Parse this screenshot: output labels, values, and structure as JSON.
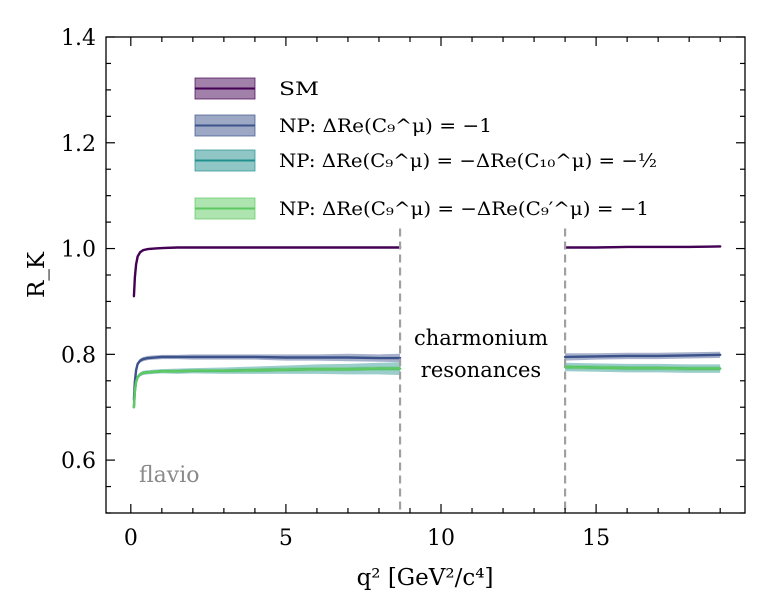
{
  "chart_data": {
    "type": "line",
    "xlabel": "q² [GeV²/c⁴]",
    "ylabel": "R_K",
    "xlim": [
      -0.8,
      19.8
    ],
    "ylim": [
      0.5,
      1.4
    ],
    "x_ticks": [
      0,
      5,
      10,
      15
    ],
    "y_ticks": [
      0.6,
      0.8,
      1.0,
      1.2,
      1.4
    ],
    "x_tick_labels": [
      "0",
      "5",
      "10",
      "15"
    ],
    "y_tick_labels": [
      "0.6",
      "0.8",
      "1.0",
      "1.2",
      "1.4"
    ],
    "grid": false,
    "legend_position": "upper-left",
    "gap": {
      "x_start": 8.68,
      "x_end": 14.0
    },
    "vlines": [
      8.68,
      14.0
    ],
    "annotation": [
      "charmonium",
      "resonances"
    ],
    "watermark": "flavio",
    "series": [
      {
        "name": "SM",
        "color": "#440154",
        "band_width": 0.002,
        "segments": [
          {
            "x": [
              0.1,
              0.13,
              0.17,
              0.22,
              0.3,
              0.4,
              0.55,
              0.75,
              1.0,
              1.5,
              2.0,
              3.0,
              4.0,
              5.0,
              6.0,
              7.0,
              8.0,
              8.68
            ],
            "y": [
              0.91,
              0.945,
              0.97,
              0.985,
              0.993,
              0.997,
              0.999,
              1.0,
              1.001,
              1.002,
              1.002,
              1.002,
              1.002,
              1.002,
              1.002,
              1.002,
              1.002,
              1.002
            ]
          },
          {
            "x": [
              14.0,
              15.0,
              16.0,
              17.0,
              18.0,
              19.0
            ],
            "y": [
              1.002,
              1.002,
              1.003,
              1.003,
              1.003,
              1.004
            ]
          }
        ]
      },
      {
        "name": "NP: ΔRe(C₉^μ) = −1",
        "color": "#3b528b",
        "band_width": 0.006,
        "segments": [
          {
            "x": [
              0.1,
              0.13,
              0.17,
              0.22,
              0.3,
              0.4,
              0.55,
              0.75,
              1.0,
              1.5,
              2.0,
              3.0,
              4.0,
              5.0,
              6.0,
              7.0,
              8.0,
              8.68
            ],
            "y": [
              0.715,
              0.748,
              0.77,
              0.782,
              0.788,
              0.791,
              0.793,
              0.794,
              0.795,
              0.795,
              0.795,
              0.795,
              0.795,
              0.794,
              0.794,
              0.794,
              0.793,
              0.793
            ],
            "band": [
              0.004,
              0.004,
              0.004,
              0.004,
              0.004,
              0.004,
              0.004,
              0.004,
              0.004,
              0.004,
              0.005,
              0.005,
              0.005,
              0.006,
              0.006,
              0.007,
              0.007,
              0.008
            ]
          },
          {
            "x": [
              14.0,
              15.0,
              16.0,
              17.0,
              18.0,
              19.0
            ],
            "y": [
              0.795,
              0.796,
              0.797,
              0.797,
              0.798,
              0.799
            ],
            "band": [
              0.007,
              0.006,
              0.006,
              0.006,
              0.006,
              0.006
            ]
          }
        ]
      },
      {
        "name": "NP: ΔRe(C₉^μ) = −ΔRe(C₁₀^μ) = −½",
        "color": "#21908d",
        "band_width": 0.006,
        "segments": [
          {
            "x": [
              0.1,
              0.13,
              0.17,
              0.22,
              0.3,
              0.4,
              0.55,
              0.75,
              1.0,
              1.5,
              2.0,
              3.0,
              4.0,
              5.0,
              6.0,
              7.0,
              8.0,
              8.68
            ],
            "y": [
              0.7,
              0.73,
              0.748,
              0.757,
              0.762,
              0.765,
              0.766,
              0.767,
              0.768,
              0.768,
              0.769,
              0.769,
              0.77,
              0.771,
              0.772,
              0.772,
              0.773,
              0.773
            ],
            "band": [
              0.004,
              0.004,
              0.004,
              0.004,
              0.004,
              0.004,
              0.004,
              0.004,
              0.004,
              0.005,
              0.005,
              0.006,
              0.007,
              0.008,
              0.009,
              0.01,
              0.011,
              0.012
            ]
          },
          {
            "x": [
              14.0,
              15.0,
              16.0,
              17.0,
              18.0,
              19.0
            ],
            "y": [
              0.776,
              0.775,
              0.774,
              0.774,
              0.773,
              0.773
            ],
            "band": [
              0.008,
              0.008,
              0.008,
              0.008,
              0.008,
              0.008
            ]
          }
        ]
      },
      {
        "name": "NP: ΔRe(C₉^μ) = −ΔRe(C₉′^μ) = −1",
        "color": "#5ec962",
        "band_width": 0.006,
        "segments": [
          {
            "x": [
              0.1,
              0.13,
              0.17,
              0.22,
              0.3,
              0.4,
              0.55,
              0.75,
              1.0,
              1.5,
              2.0,
              3.0,
              4.0,
              5.0,
              6.0,
              7.0,
              8.0,
              8.68
            ],
            "y": [
              0.7,
              0.73,
              0.748,
              0.757,
              0.762,
              0.765,
              0.766,
              0.767,
              0.768,
              0.768,
              0.769,
              0.769,
              0.77,
              0.771,
              0.772,
              0.772,
              0.773,
              0.773
            ],
            "band": [
              0.003,
              0.003,
              0.003,
              0.003,
              0.003,
              0.003,
              0.003,
              0.003,
              0.003,
              0.003,
              0.003,
              0.003,
              0.004,
              0.004,
              0.004,
              0.004,
              0.004,
              0.004
            ]
          },
          {
            "x": [
              14.0,
              15.0,
              16.0,
              17.0,
              18.0,
              19.0
            ],
            "y": [
              0.776,
              0.775,
              0.774,
              0.774,
              0.773,
              0.773
            ],
            "band": [
              0.004,
              0.004,
              0.004,
              0.004,
              0.004,
              0.004
            ]
          }
        ]
      }
    ]
  }
}
